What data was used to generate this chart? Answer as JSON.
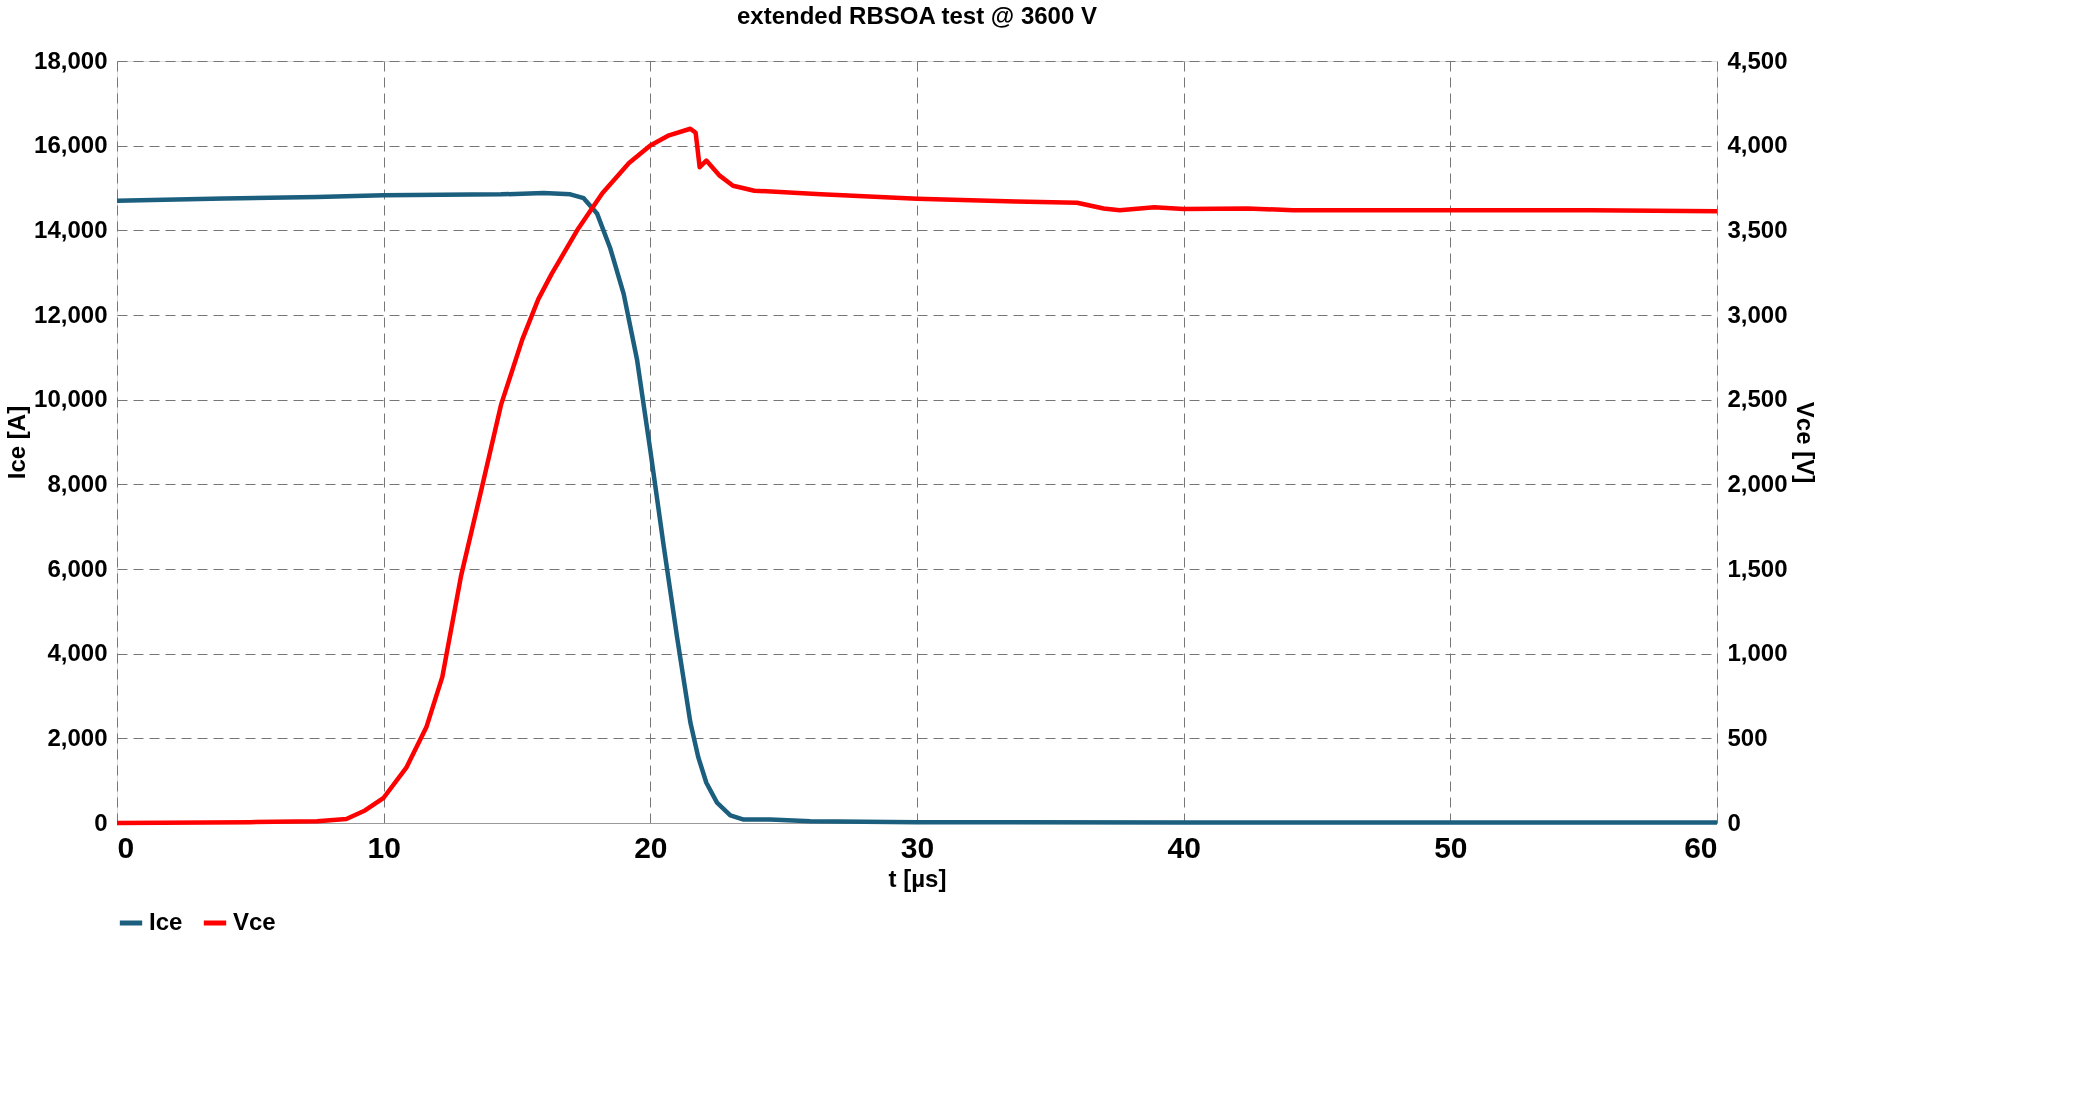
{
  "chart_data": {
    "type": "line",
    "title": "extended RBSOA test @ 3600 V",
    "xlabel": "t [µs]",
    "ylabel": "Ice [A]",
    "y2label": "Vce [V]",
    "xlim": [
      0,
      60
    ],
    "xticks": [
      0,
      10,
      20,
      30,
      40,
      50,
      60
    ],
    "ylim": [
      0,
      18000
    ],
    "yticks": [
      0,
      {
        "value": 2000,
        "label": "2,000"
      },
      {
        "value": 4000,
        "label": "4,000"
      },
      {
        "value": 6000,
        "label": "6,000"
      },
      {
        "value": 8000,
        "label": "8,000"
      },
      {
        "value": 10000,
        "label": "10,000"
      },
      {
        "value": 12000,
        "label": "12,000"
      },
      {
        "value": 14000,
        "label": "14,000"
      },
      {
        "value": 16000,
        "label": "16,000"
      },
      {
        "value": 18000,
        "label": "18,000"
      }
    ],
    "y2lim": [
      0,
      4500
    ],
    "y2ticks": [
      0,
      500,
      {
        "value": 1000,
        "label": "1,000"
      },
      {
        "value": 1500,
        "label": "1,500"
      },
      {
        "value": 2000,
        "label": "2,000"
      },
      {
        "value": 2500,
        "label": "2,500"
      },
      {
        "value": 3000,
        "label": "3,000"
      },
      {
        "value": 3500,
        "label": "3,500"
      },
      {
        "value": 4000,
        "label": "4,000"
      },
      {
        "value": 4500,
        "label": "4,500"
      }
    ],
    "grid": true,
    "legend": "bottom",
    "line_style": "solid",
    "marker": "none",
    "series": [
      {
        "name": "Ice",
        "color": "#1b5e7e",
        "x": [
          0,
          4,
          7.5,
          10,
          14.4,
          16,
          17,
          17.5,
          18,
          18.5,
          19,
          19.5,
          20,
          20.5,
          21,
          21.5,
          21.8,
          22.1,
          22.5,
          23,
          23.5,
          24.5,
          26,
          30,
          40,
          50,
          60
        ],
        "values": [
          14700,
          14750,
          14790,
          14830,
          14850,
          14880,
          14850,
          14760,
          14400,
          13570,
          12500,
          10950,
          8800,
          6550,
          4400,
          2380,
          1550,
          950,
          480,
          180,
          80,
          80,
          40,
          20,
          10,
          10,
          10
        ]
      },
      {
        "name": "Vce",
        "color": "#ff0000",
        "axis": "y2",
        "x": [
          0,
          5,
          7.5,
          8.6,
          9.3,
          10,
          10.85,
          11.6,
          12.2,
          12.9,
          13.7,
          14.4,
          15.2,
          15.8,
          16.3,
          17.3,
          18.2,
          19.2,
          20,
          20.7,
          21.5,
          21.7,
          21.85,
          22.1,
          22.6,
          23.1,
          23.9,
          26.4,
          30,
          33.7,
          36,
          37,
          37.6,
          38.9,
          40,
          42.4,
          44.1,
          46.7,
          50,
          55.3,
          60
        ],
        "values": [
          0,
          5,
          10,
          24,
          74,
          149,
          327,
          565,
          863,
          1458,
          1993,
          2469,
          2856,
          3094,
          3243,
          3511,
          3719,
          3897,
          4001,
          4061,
          4100,
          4076,
          3873,
          3912,
          3823,
          3763,
          3734,
          3713,
          3687,
          3670,
          3663,
          3629,
          3619,
          3636,
          3626,
          3629,
          3619,
          3619,
          3619,
          3619,
          3612
        ]
      }
    ]
  }
}
